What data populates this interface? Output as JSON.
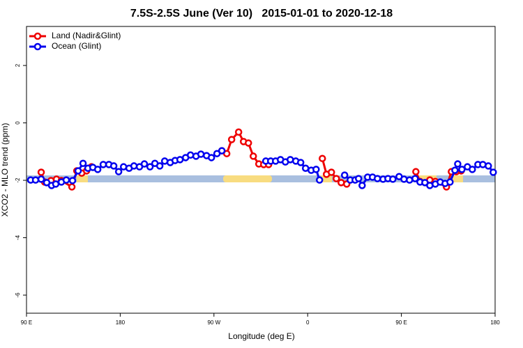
{
  "chart_data": {
    "type": "line",
    "title": "7.5S-2.5S June (Ver 10)   2015-01-01 to 2020-12-18",
    "xlabel": "Longitude (deg E)",
    "ylabel": "XCO2 - MLO trend (ppm)",
    "xlim": [
      90,
      540
    ],
    "ylim": [
      -6.63,
      3.36
    ],
    "xticks": [
      {
        "value": 90,
        "label": "90 E"
      },
      {
        "value": 180,
        "label": "180"
      },
      {
        "value": 270,
        "label": "90 W"
      },
      {
        "value": 360,
        "label": "0"
      },
      {
        "value": 450,
        "label": "90 E"
      },
      {
        "value": 540,
        "label": "180"
      }
    ],
    "yticks": [
      -6,
      -4,
      -2,
      0,
      2
    ],
    "legend": "top-left",
    "series": [
      {
        "name": "Land (Nadir&Glint)",
        "color": "#ee0000",
        "x": [
          104.1,
          107.4,
          113.5,
          118.8,
          123.5,
          133.6,
          138.3,
          143,
          147.7,
          152.4,
          null,
          277.6,
          282.3,
          287,
          293.7,
          298.4,
          303.1,
          307.8,
          313.1,
          317.8,
          322.5,
          null,
          374.1,
          378.1,
          382.8,
          387.5,
          392.2,
          397.5,
          null,
          463.9,
          467.9,
          477.3,
          482.6,
          493.3,
          498,
          502.7,
          507.4
        ],
        "values": [
          -1.72,
          -2.06,
          -2.01,
          -1.96,
          -2.01,
          -2.23,
          -1.67,
          -1.75,
          -1.67,
          -1.53,
          null,
          -0.97,
          -1.07,
          -0.58,
          -0.32,
          -0.65,
          -0.7,
          -1.16,
          -1.43,
          -1.45,
          -1.45,
          null,
          -1.24,
          -1.79,
          -1.72,
          -1.94,
          -2.08,
          -2.13,
          null,
          -1.7,
          -2.04,
          -1.99,
          -2.04,
          -2.23,
          -1.7,
          -1.7,
          -1.67
        ]
      },
      {
        "name": "Ocean (Glint)",
        "color": "#0000ee",
        "x": [
          94,
          98.7,
          104.1,
          109.4,
          114.1,
          118.1,
          123.5,
          128.2,
          134.2,
          139.6,
          144.3,
          149,
          153.7,
          158.4,
          163.7,
          169.1,
          173.8,
          178.5,
          183.2,
          188.5,
          193.2,
          198.5,
          203.2,
          208.6,
          213.3,
          218,
          222.7,
          228,
          232.7,
          237.4,
          242.8,
          247.5,
          252.8,
          257.5,
          262.9,
          267.6,
          272.9,
          277.6,
          null,
          319.8,
          324.5,
          329.2,
          333.9,
          338.6,
          343.3,
          348.6,
          353.3,
          358,
          363.4,
          368.1,
          371.4,
          null,
          395.5,
          400.9,
          405.6,
          408.9,
          412.3,
          417.6,
          422.3,
          427,
          432.4,
          437.1,
          441.8,
          447.8,
          452.5,
          457.8,
          463.2,
          467.9,
          472.6,
          477.3,
          482.6,
          487.3,
          492,
          496.7,
          501.4,
          504.1,
          508.1,
          513.4,
          518.1,
          523.5,
          528.2,
          533.5,
          538.2
        ],
        "values": [
          -1.99,
          -1.99,
          -1.96,
          -2.08,
          -2.18,
          -2.13,
          -2.06,
          -1.99,
          -2.01,
          -1.67,
          -1.41,
          -1.58,
          -1.55,
          -1.62,
          -1.45,
          -1.45,
          -1.5,
          -1.7,
          -1.53,
          -1.58,
          -1.5,
          -1.53,
          -1.43,
          -1.53,
          -1.41,
          -1.5,
          -1.33,
          -1.38,
          -1.31,
          -1.28,
          -1.21,
          -1.12,
          -1.16,
          -1.09,
          -1.14,
          -1.21,
          -1.07,
          -0.97,
          null,
          -1.33,
          -1.33,
          -1.33,
          -1.28,
          -1.36,
          -1.28,
          -1.33,
          -1.38,
          -1.58,
          -1.65,
          -1.62,
          -1.99,
          null,
          -1.82,
          -1.99,
          -1.99,
          -1.94,
          -2.18,
          -1.89,
          -1.89,
          -1.94,
          -1.96,
          -1.94,
          -1.96,
          -1.87,
          -1.96,
          -1.99,
          -1.94,
          -2.06,
          -2.08,
          -2.18,
          -2.13,
          -2.06,
          -2.11,
          -2.06,
          -1.65,
          -1.43,
          -1.62,
          -1.53,
          -1.62,
          -1.45,
          -1.45,
          -1.5,
          -1.72
        ]
      }
    ]
  }
}
